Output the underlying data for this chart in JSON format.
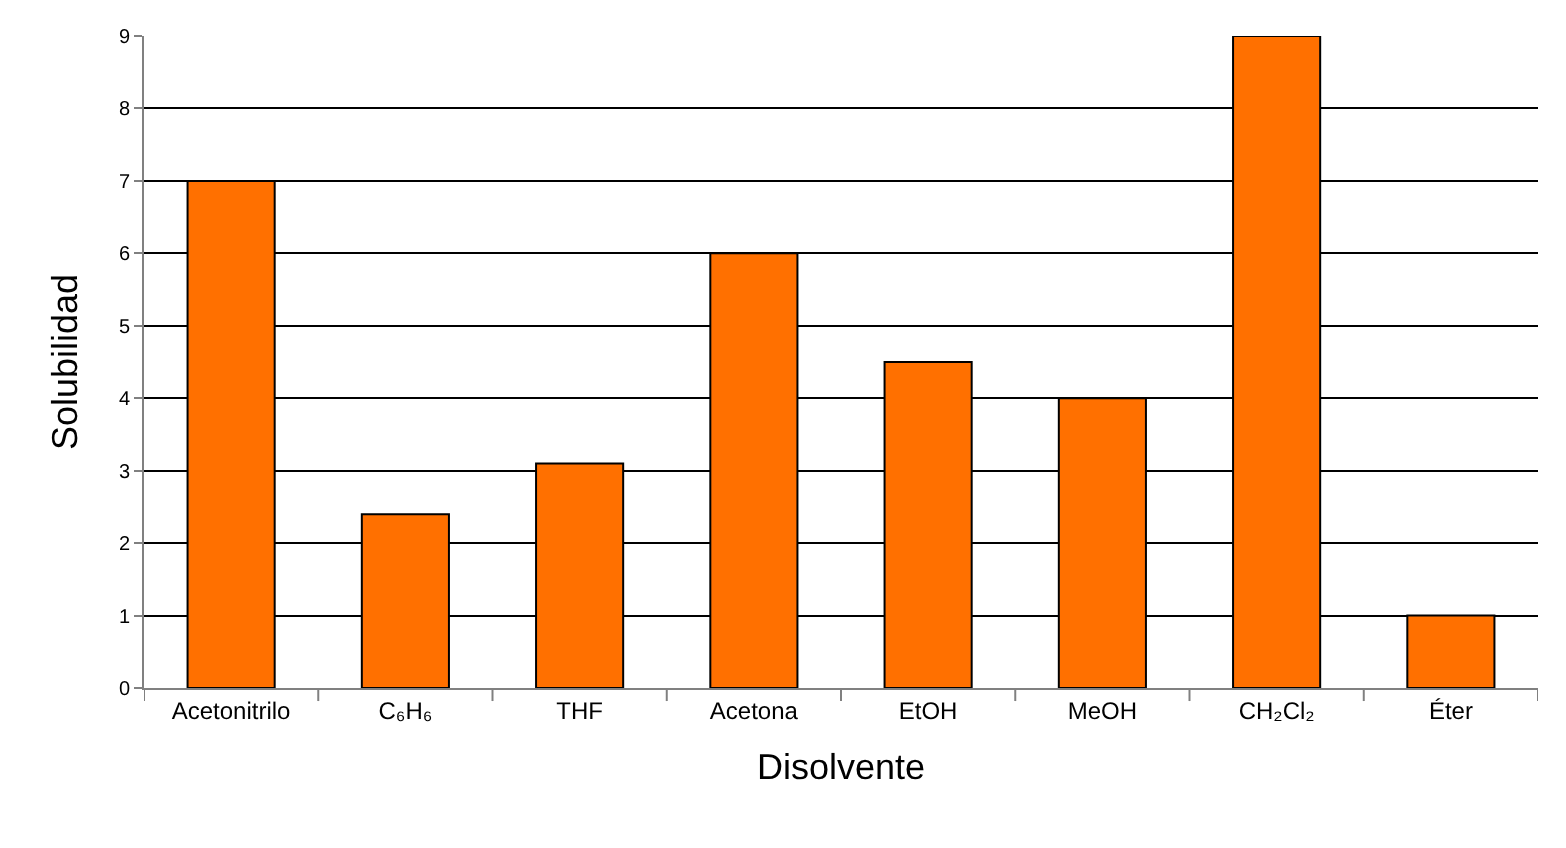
{
  "chart_data": {
    "type": "bar",
    "categories": [
      "Acetonitrilo",
      "C₆H₆",
      "THF",
      "Acetona",
      "EtOH",
      "MeOH",
      "CH₂Cl₂",
      "Éter"
    ],
    "values": [
      7,
      2.4,
      3.1,
      6,
      4.5,
      4,
      9,
      1
    ],
    "color": "#ff7000",
    "xlabel": "Disolvente",
    "ylabel": "Solubilidad",
    "ylim": [
      0,
      9
    ],
    "yticks": [
      0,
      1,
      2,
      3,
      4,
      5,
      6,
      7,
      8,
      9
    ],
    "grid": "y",
    "legend": false
  }
}
